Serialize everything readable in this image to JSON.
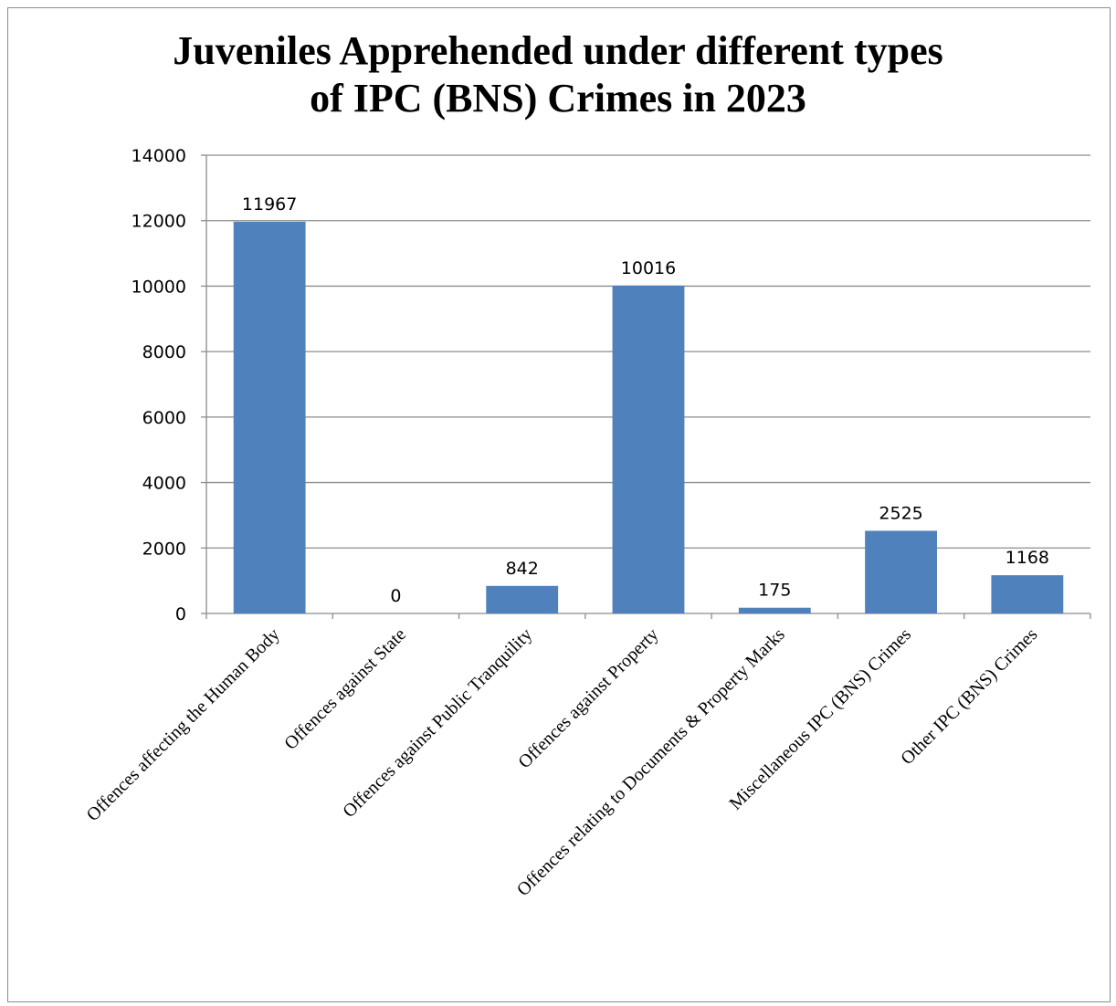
{
  "chart_data": {
    "type": "bar",
    "title_lines": [
      "Juveniles Apprehended under different types",
      "of IPC (BNS) Crimes in 2023"
    ],
    "categories": [
      "Offences affecting the Human Body",
      "Offences against State",
      "Offences against Public Tranquility",
      "Offences against Property",
      "Offences relating to Documents & Property Marks",
      "Miscellaneous IPC (BNS) Crimes",
      "Other IPC (BNS) Crimes"
    ],
    "values": [
      11967,
      0,
      842,
      10016,
      175,
      2525,
      1168
    ],
    "ylim": [
      0,
      14000
    ],
    "yticks": [
      0,
      2000,
      4000,
      6000,
      8000,
      10000,
      12000,
      14000
    ],
    "grid": true,
    "legend": "none",
    "colors": {
      "bar": "#4f81bd",
      "grid": "#8c8c8c",
      "axis": "#8c8c8c",
      "frame": "#8c8c8c"
    }
  }
}
